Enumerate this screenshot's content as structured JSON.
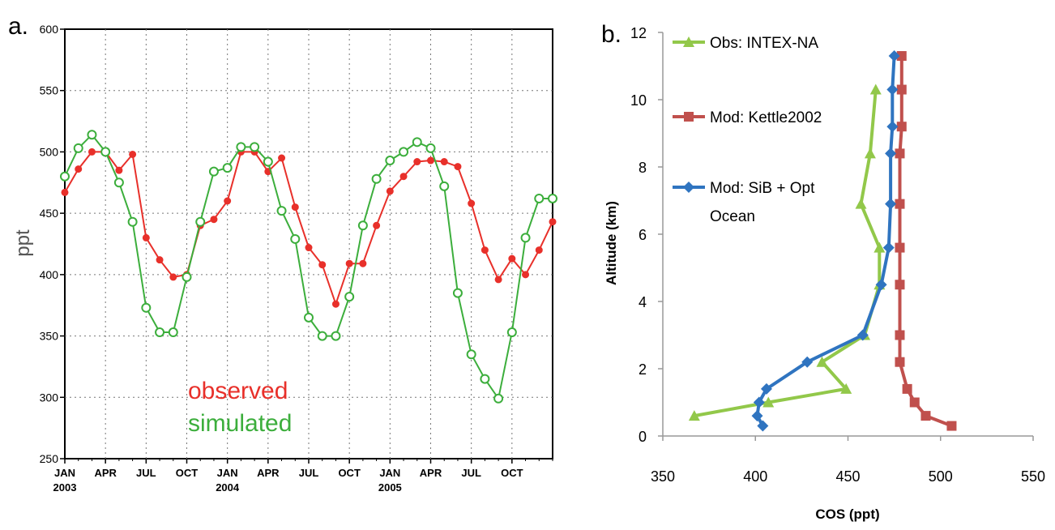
{
  "chart_data": [
    {
      "panel_label": "a.",
      "type": "line",
      "ylabel": "ppt",
      "ylim": [
        250,
        600
      ],
      "yticks": [
        250,
        300,
        350,
        400,
        450,
        500,
        550,
        600
      ],
      "xlim": [
        0,
        36
      ],
      "xtick_labels": [
        {
          "month": 0,
          "label": "JAN",
          "year": "2003"
        },
        {
          "month": 3,
          "label": "APR",
          "year": ""
        },
        {
          "month": 6,
          "label": "JUL",
          "year": ""
        },
        {
          "month": 9,
          "label": "OCT",
          "year": ""
        },
        {
          "month": 12,
          "label": "JAN",
          "year": "2004"
        },
        {
          "month": 15,
          "label": "APR",
          "year": ""
        },
        {
          "month": 18,
          "label": "JUL",
          "year": ""
        },
        {
          "month": 21,
          "label": "OCT",
          "year": ""
        },
        {
          "month": 24,
          "label": "JAN",
          "year": "2005"
        },
        {
          "month": 27,
          "label": "APR",
          "year": ""
        },
        {
          "month": 30,
          "label": "JUL",
          "year": ""
        },
        {
          "month": 33,
          "label": "OCT",
          "year": ""
        }
      ],
      "grid": true,
      "legend": "inline text, lower-middle",
      "series": [
        {
          "name": "observed",
          "color": "#e8302a",
          "marker": "filled-circle",
          "x": [
            0,
            1,
            2,
            3,
            4,
            5,
            6,
            7,
            8,
            9,
            10,
            11,
            12,
            13,
            14,
            15,
            16,
            17,
            18,
            19,
            20,
            21,
            22,
            23,
            24,
            25,
            26,
            27,
            28,
            29,
            30,
            31,
            32,
            33,
            34,
            35,
            36
          ],
          "y": [
            467,
            486,
            500,
            500,
            485,
            498,
            430,
            412,
            398,
            400,
            440,
            445,
            460,
            500,
            500,
            484,
            495,
            455,
            422,
            408,
            376,
            409,
            409,
            440,
            468,
            480,
            492,
            493,
            492,
            488,
            458,
            420,
            396,
            413,
            400,
            420,
            443
          ]
        },
        {
          "name": "simulated",
          "color": "#3cae3c",
          "marker": "open-circle",
          "x": [
            0,
            1,
            2,
            3,
            4,
            5,
            6,
            7,
            8,
            9,
            10,
            11,
            12,
            13,
            14,
            15,
            16,
            17,
            18,
            19,
            20,
            21,
            22,
            23,
            24,
            25,
            26,
            27,
            28,
            29,
            30,
            31,
            32,
            33,
            34,
            35,
            36
          ],
          "y": [
            480,
            503,
            514,
            500,
            475,
            443,
            373,
            353,
            353,
            398,
            443,
            484,
            487,
            504,
            504,
            492,
            452,
            429,
            365,
            350,
            350,
            382,
            440,
            478,
            493,
            500,
            508,
            503,
            472,
            385,
            335,
            315,
            299,
            353,
            430,
            462,
            462
          ]
        }
      ]
    },
    {
      "panel_label": "b.",
      "type": "line",
      "xlabel": "COS (ppt)",
      "ylabel": "Altitude (km)",
      "xlim": [
        350,
        550
      ],
      "ylim": [
        0,
        12
      ],
      "xticks": [
        350,
        400,
        450,
        500,
        550
      ],
      "yticks": [
        0,
        2,
        4,
        6,
        8,
        10,
        12
      ],
      "grid": false,
      "legend": "top-left",
      "series": [
        {
          "name": "Obs: INTEX-NA",
          "color": "#92c84a",
          "marker": "triangle",
          "x": [
            367,
            407,
            449,
            436,
            459,
            467,
            467,
            457,
            462,
            465
          ],
          "y": [
            0.6,
            1.0,
            1.4,
            2.2,
            3.0,
            4.5,
            5.6,
            6.9,
            8.4,
            10.3
          ]
        },
        {
          "name": "Mod: Kettle2002",
          "color": "#c0504d",
          "marker": "square",
          "x": [
            506,
            492,
            486,
            482,
            478,
            478,
            478,
            478,
            478,
            478,
            479,
            479,
            479
          ],
          "y": [
            0.3,
            0.6,
            1.0,
            1.4,
            2.2,
            3.0,
            4.5,
            5.6,
            6.9,
            8.4,
            9.2,
            10.3,
            11.3
          ]
        },
        {
          "name": "Mod: SiB + Opt",
          "name_line2": "Ocean",
          "color": "#2f74c0",
          "marker": "diamond",
          "x": [
            404,
            401,
            402,
            406,
            428,
            458,
            468,
            472,
            473,
            473,
            474,
            474,
            475
          ],
          "y": [
            0.3,
            0.6,
            1.0,
            1.4,
            2.2,
            3.0,
            4.5,
            5.6,
            6.9,
            8.4,
            9.2,
            10.3,
            11.3
          ]
        }
      ]
    }
  ]
}
